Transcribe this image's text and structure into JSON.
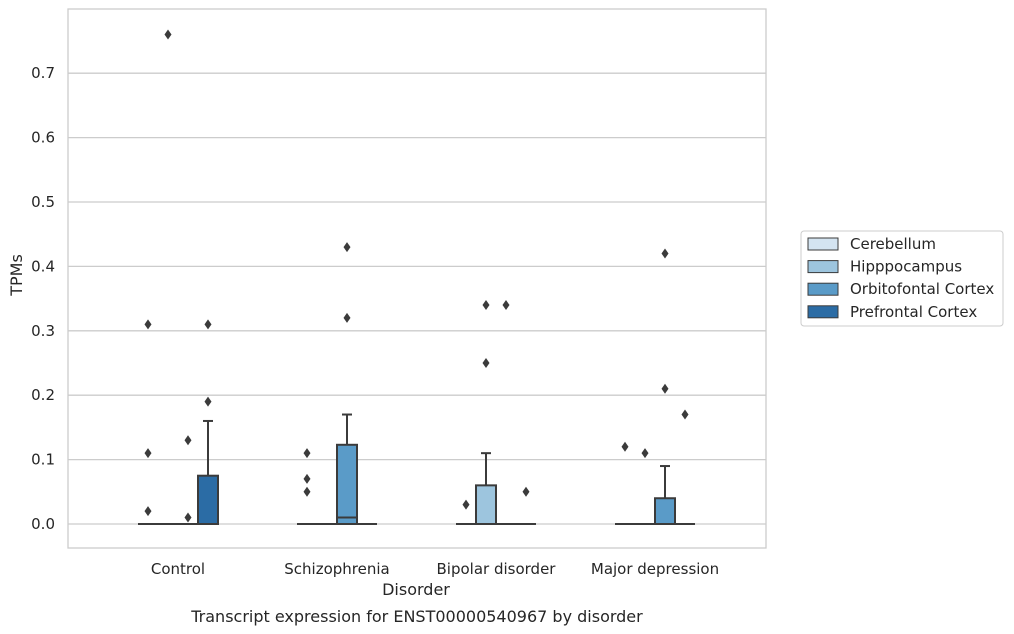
{
  "chart_data": {
    "type": "box",
    "title": "Transcript expression for ENST00000540967 by disorder",
    "xlabel": "Disorder",
    "ylabel": "TPMs",
    "ylim": [
      -0.037,
      0.8
    ],
    "yticks": [
      "0.0",
      "0.1",
      "0.2",
      "0.3",
      "0.4",
      "0.5",
      "0.6",
      "0.7"
    ],
    "grid": "horizontal",
    "legend_position": "right",
    "categories": [
      "Control",
      "Schizophrenia",
      "Bipolar disorder",
      "Major depression"
    ],
    "series": [
      {
        "name": "Cerebellum",
        "color": "#d4e4f1",
        "boxes": [
          {
            "q1": 0,
            "median": 0,
            "q3": 0,
            "whisker_low": 0,
            "whisker_high": 0,
            "outliers": [
              0.02,
              0.11,
              0.31
            ]
          },
          {
            "q1": 0,
            "median": 0,
            "q3": 0,
            "whisker_low": 0,
            "whisker_high": 0,
            "outliers": [
              0.05,
              0.07,
              0.11
            ]
          },
          {
            "q1": 0,
            "median": 0,
            "q3": 0,
            "whisker_low": 0,
            "whisker_high": 0,
            "outliers": [
              0.03
            ]
          },
          {
            "q1": 0,
            "median": 0,
            "q3": 0,
            "whisker_low": 0,
            "whisker_high": 0,
            "outliers": [
              0.12
            ]
          }
        ]
      },
      {
        "name": "Hipppocampus",
        "color": "#9dc5de",
        "boxes": [
          {
            "q1": 0,
            "median": 0,
            "q3": 0,
            "whisker_low": 0,
            "whisker_high": 0,
            "outliers": [
              0.76
            ]
          },
          {
            "q1": 0,
            "median": 0,
            "q3": 0,
            "whisker_low": 0,
            "whisker_high": 0,
            "outliers": []
          },
          {
            "q1": 0,
            "median": 0,
            "q3": 0.06,
            "whisker_low": 0,
            "whisker_high": 0.11,
            "outliers": [
              0.25,
              0.34
            ]
          },
          {
            "q1": 0,
            "median": 0,
            "q3": 0,
            "whisker_low": 0,
            "whisker_high": 0,
            "outliers": [
              0.11
            ]
          }
        ]
      },
      {
        "name": "Orbitofontal Cortex",
        "color": "#5a9bc8",
        "boxes": [
          {
            "q1": 0,
            "median": 0,
            "q3": 0,
            "whisker_low": 0,
            "whisker_high": 0,
            "outliers": [
              0.01,
              0.13
            ]
          },
          {
            "q1": 0,
            "median": 0.01,
            "q3": 0.123,
            "whisker_low": 0,
            "whisker_high": 0.17,
            "outliers": [
              0.32,
              0.43
            ]
          },
          {
            "q1": 0,
            "median": 0,
            "q3": 0,
            "whisker_low": 0,
            "whisker_high": 0,
            "outliers": [
              0.34
            ]
          },
          {
            "q1": 0,
            "median": 0,
            "q3": 0.04,
            "whisker_low": 0,
            "whisker_high": 0.09,
            "outliers": [
              0.21,
              0.42
            ]
          }
        ]
      },
      {
        "name": "Prefrontal Cortex",
        "color": "#2b6ca5",
        "boxes": [
          {
            "q1": 0,
            "median": 0,
            "q3": 0.075,
            "whisker_low": 0,
            "whisker_high": 0.16,
            "outliers": [
              0.19,
              0.31
            ]
          },
          {
            "q1": 0,
            "median": 0,
            "q3": 0,
            "whisker_low": 0,
            "whisker_high": 0,
            "outliers": []
          },
          {
            "q1": 0,
            "median": 0,
            "q3": 0,
            "whisker_low": 0,
            "whisker_high": 0,
            "outliers": [
              0.05
            ]
          },
          {
            "q1": 0,
            "median": 0,
            "q3": 0,
            "whisker_low": 0,
            "whisker_high": 0,
            "outliers": [
              0.17
            ]
          }
        ]
      }
    ]
  }
}
